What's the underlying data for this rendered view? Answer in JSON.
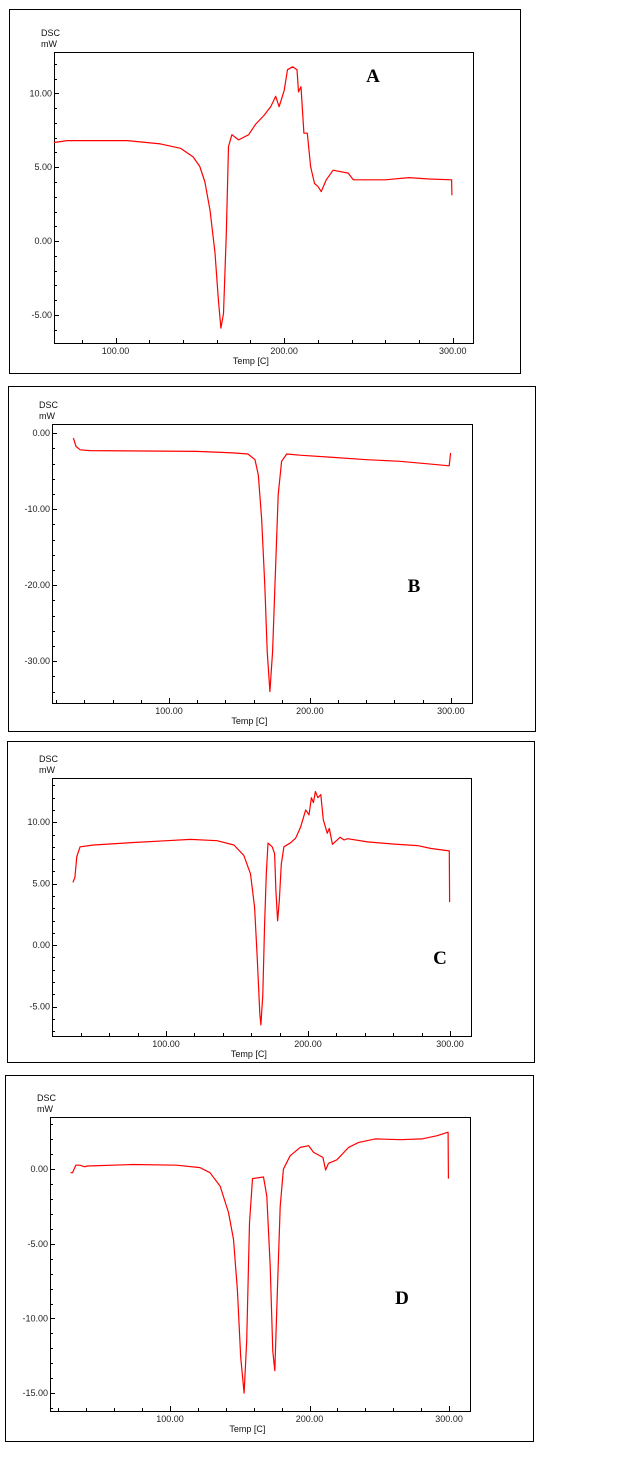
{
  "chart_data": [
    {
      "type": "line",
      "panel_label": "A",
      "ylabel_line1": "DSC",
      "ylabel_line2": "mW",
      "xlabel": "Temp  [C]",
      "xlim": [
        63.5,
        312
      ],
      "ylim": [
        -6.9,
        12.8
      ],
      "xticks": [
        100,
        200,
        300
      ],
      "xtick_labels": [
        "100.00",
        "200.00",
        "300.00"
      ],
      "yticks": [
        10,
        5,
        0,
        -5
      ],
      "ytick_labels": [
        "10.00",
        "5.00",
        "0.00",
        "-5.00"
      ],
      "series": [
        {
          "name": "DSC",
          "color": "#ff0000",
          "x": [
            63.5,
            71.4,
            107,
            126.6,
            138.5,
            146,
            150,
            153,
            156,
            159,
            161,
            162.5,
            164,
            165.7,
            167,
            169,
            173,
            179,
            183,
            188,
            192,
            195,
            197,
            200,
            202,
            205,
            207.6,
            208.5,
            210,
            211.7,
            213.7,
            215.7,
            218,
            220,
            222,
            225,
            229,
            238,
            241,
            260,
            274,
            286,
            299.3,
            299.5
          ],
          "y": [
            6.67,
            6.8,
            6.8,
            6.58,
            6.28,
            5.7,
            5.05,
            4.0,
            2.1,
            -0.8,
            -4.0,
            -5.9,
            -4.9,
            0.5,
            6.4,
            7.2,
            6.85,
            7.2,
            7.9,
            8.5,
            9.1,
            9.8,
            9.1,
            10.2,
            11.6,
            11.8,
            11.6,
            10.1,
            10.45,
            7.3,
            7.3,
            5.05,
            3.9,
            3.7,
            3.35,
            4.15,
            4.8,
            4.6,
            4.15,
            4.15,
            4.3,
            4.2,
            4.15,
            3.1
          ]
        }
      ]
    },
    {
      "type": "line",
      "panel_label": "B",
      "ylabel_line1": "DSC",
      "ylabel_line2": "mW",
      "xlabel": "Temp  [C]",
      "xlim": [
        17,
        315
      ],
      "ylim": [
        -35.5,
        1.2
      ],
      "xticks": [
        100,
        200,
        300
      ],
      "xtick_labels": [
        "100.00",
        "200.00",
        "300.00"
      ],
      "yticks": [
        0,
        -10,
        -20,
        -30
      ],
      "ytick_labels": [
        "0.00",
        "-10.00",
        "-20.00",
        "-30.00"
      ],
      "series": [
        {
          "name": "DSC",
          "color": "#ff0000",
          "x": [
            32.2,
            34,
            37,
            44,
            119.6,
            145.6,
            156,
            161,
            163.4,
            165.7,
            168,
            169.7,
            171.6,
            173.5,
            175.4,
            177.5,
            179.9,
            183.5,
            192.9,
            216.5,
            240.2,
            263.8,
            287.5,
            298.8,
            299.8
          ],
          "y": [
            -0.66,
            -1.75,
            -2.2,
            -2.3,
            -2.4,
            -2.6,
            -2.75,
            -3.5,
            -5.5,
            -11.2,
            -20,
            -28.7,
            -34,
            -28.7,
            -19.1,
            -8.1,
            -3.7,
            -2.75,
            -2.9,
            -3.2,
            -3.5,
            -3.7,
            -4.1,
            -4.3,
            -2.6
          ]
        }
      ]
    },
    {
      "type": "line",
      "panel_label": "C",
      "ylabel_line1": "DSC",
      "ylabel_line2": "mW",
      "xlabel": "Temp  [C]",
      "xlim": [
        19.7,
        314.8
      ],
      "ylim": [
        -7.4,
        13.6
      ],
      "xticks": [
        100,
        200,
        300
      ],
      "xtick_labels": [
        "100.00",
        "200.00",
        "300.00"
      ],
      "yticks": [
        10,
        5,
        0,
        -5
      ],
      "ytick_labels": [
        "10.00",
        "5.00",
        "0.00",
        "-5.00"
      ],
      "series": [
        {
          "name": "DSC",
          "color": "#ff0000",
          "x": [
            34.4,
            35.8,
            37.2,
            39.5,
            49,
            77.2,
            100.7,
            117.2,
            136,
            147.8,
            154.8,
            159.5,
            162.4,
            164.2,
            166.1,
            166.8,
            168.2,
            169.4,
            170.6,
            171.8,
            174.8,
            176.5,
            177.4,
            178.6,
            179.8,
            181.2,
            183,
            187.8,
            191.3,
            194.8,
            198.4,
            200.7,
            202.4,
            203.8,
            205.2,
            207,
            209,
            210.8,
            213.6,
            215,
            217.2,
            222.6,
            225.4,
            227.8,
            241.9,
            260.7,
            277.2,
            286.6,
            299.5,
            299.7
          ],
          "y": [
            5.1,
            5.5,
            7.2,
            8.0,
            8.15,
            8.35,
            8.5,
            8.6,
            8.5,
            8.15,
            7.3,
            5.8,
            3.07,
            -1.0,
            -5.7,
            -6.5,
            -4.05,
            1.7,
            5.8,
            8.3,
            8.0,
            7.45,
            4.44,
            1.97,
            3.6,
            6.6,
            8.0,
            8.33,
            8.7,
            9.6,
            11.0,
            10.6,
            12.0,
            11.6,
            12.5,
            12.0,
            12.25,
            10.2,
            9.1,
            9.5,
            8.2,
            8.77,
            8.55,
            8.66,
            8.4,
            8.22,
            8.1,
            7.86,
            7.67,
            3.5
          ]
        }
      ]
    },
    {
      "type": "line",
      "panel_label": "D",
      "ylabel_line1": "DSC",
      "ylabel_line2": "mW",
      "xlabel": "Temp  [C]",
      "xlim": [
        14,
        315
      ],
      "ylim": [
        -16.2,
        3.5
      ],
      "xticks": [
        100,
        200,
        300
      ],
      "xtick_labels": [
        "100.00",
        "200.00",
        "300.00"
      ],
      "yticks": [
        0,
        -5,
        -10,
        -15
      ],
      "ytick_labels": [
        "0.00",
        "-5.00",
        "-10.00",
        "-15.00"
      ],
      "series": [
        {
          "name": "DSC",
          "color": "#ff0000",
          "x": [
            28.7,
            30.1,
            32.5,
            35.4,
            39,
            40.7,
            73.7,
            104.8,
            121.5,
            128.7,
            135.9,
            141.9,
            145.5,
            148.3,
            150.7,
            153.1,
            155,
            157,
            159.1,
            167,
            169.4,
            171.8,
            173.7,
            175.1,
            177,
            179,
            181.3,
            186.1,
            193.3,
            199.3,
            202.9,
            209.6,
            211.5,
            213.6,
            219.6,
            228,
            235.2,
            247.1,
            265.1,
            280.6,
            291.4,
            299.3,
            299.5
          ],
          "y": [
            -0.23,
            -0.23,
            0.27,
            0.27,
            0.16,
            0.22,
            0.32,
            0.27,
            0.11,
            -0.23,
            -1.13,
            -2.9,
            -4.7,
            -8.1,
            -12.6,
            -15.0,
            -11.5,
            -3.6,
            -0.63,
            -0.52,
            -1.8,
            -6.5,
            -12.2,
            -13.5,
            -8.1,
            -2.5,
            0,
            0.9,
            1.46,
            1.58,
            1.13,
            0.79,
            -0.05,
            0.4,
            0.63,
            1.46,
            1.8,
            2.03,
            1.98,
            2.03,
            2.25,
            2.48,
            -0.63
          ]
        }
      ]
    }
  ]
}
